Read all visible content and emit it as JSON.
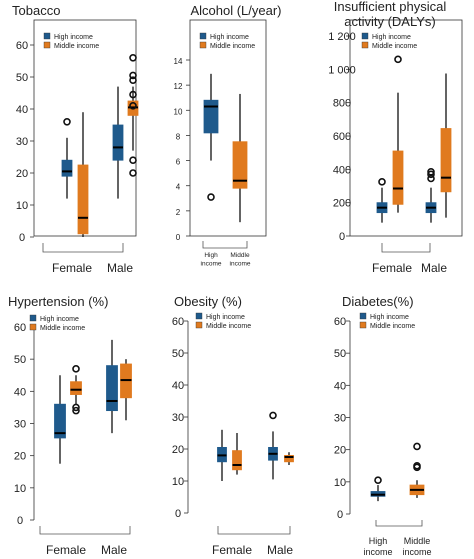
{
  "colors": {
    "high_income": "#1f5a8c",
    "middle_income": "#e07a1f",
    "median": "#000000",
    "axis": "#333333"
  },
  "chart_data": [
    {
      "type": "boxplot",
      "title": "Tobacco",
      "ylim": [
        0,
        60
      ],
      "yticks": [
        "0",
        "10",
        "20",
        "30",
        "40",
        "50",
        "60"
      ],
      "axis_style": "box",
      "categories": [
        "Female",
        "Male"
      ],
      "legend": {
        "position": "top-left",
        "entries": [
          "High income",
          "Middle income"
        ]
      },
      "series": [
        {
          "name": "High income",
          "values": [
            {
              "category": "Female",
              "min": 12,
              "q1": 19,
              "median": 20.5,
              "q3": 24,
              "max": 31,
              "outliers": [
                36
              ]
            },
            {
              "category": "Male",
              "min": 12,
              "q1": 24,
              "median": 28,
              "q3": 35,
              "max": 47,
              "outliers": []
            }
          ]
        },
        {
          "name": "Middle income",
          "values": [
            {
              "category": "Female",
              "min": 0,
              "q1": 1,
              "median": 6,
              "q3": 22.5,
              "max": 39,
              "outliers": []
            },
            {
              "category": "Male",
              "min": 27,
              "q1": 38,
              "median": 40.5,
              "q3": 42.5,
              "max": 47,
              "outliers": [
                56,
                50.5,
                49,
                44.5,
                41,
                24,
                20
              ]
            }
          ]
        }
      ]
    },
    {
      "type": "boxplot",
      "title": "Alcohol (L/year)",
      "ylim": [
        0,
        14
      ],
      "yticks": [
        "0",
        "2",
        "4",
        "6",
        "8",
        "10",
        "12",
        "14"
      ],
      "axis_style": "box",
      "categories": [
        "High income",
        "Middle income"
      ],
      "legend": {
        "position": "top-left",
        "entries": [
          "High income",
          "Middle income"
        ]
      },
      "series": [
        {
          "name": "High income",
          "values": [
            {
              "category": "High income",
              "min": 6,
              "q1": 8.2,
              "median": 10.3,
              "q3": 10.8,
              "max": 12.9,
              "outliers": [
                3.1
              ]
            },
            {
              "category": "Middle income",
              "min": null,
              "q1": null,
              "median": null,
              "q3": null,
              "max": null,
              "outliers": []
            }
          ]
        },
        {
          "name": "Middle income",
          "values": [
            {
              "category": "High income",
              "min": null,
              "q1": null,
              "median": null,
              "q3": null,
              "max": null,
              "outliers": []
            },
            {
              "category": "Middle income",
              "min": 1.1,
              "q1": 3.8,
              "median": 4.4,
              "q3": 7.5,
              "max": 11.3,
              "outliers": []
            }
          ]
        }
      ]
    },
    {
      "type": "boxplot",
      "title": "Insufficient physical activity (DALYs)",
      "ylim": [
        0,
        1200
      ],
      "yticks": [
        "0",
        "200",
        "400",
        "600",
        "800",
        "1 000",
        "1 200"
      ],
      "axis_style": "box",
      "categories": [
        "Female",
        "Male"
      ],
      "legend": {
        "position": "top-left",
        "entries": [
          "High income",
          "Middle income"
        ]
      },
      "series": [
        {
          "name": "High income",
          "values": [
            {
              "category": "Female",
              "min": 80,
              "q1": 140,
              "median": 170,
              "q3": 200,
              "max": 290,
              "outliers": [
                325
              ]
            },
            {
              "category": "Male",
              "min": 80,
              "q1": 140,
              "median": 170,
              "q3": 200,
              "max": 290,
              "outliers": [
                345,
                370,
                385
              ]
            }
          ]
        },
        {
          "name": "Middle income",
          "values": [
            {
              "category": "Female",
              "min": 140,
              "q1": 190,
              "median": 285,
              "q3": 510,
              "max": 860,
              "outliers": [
                1060
              ]
            },
            {
              "category": "Male",
              "min": 110,
              "q1": 265,
              "median": 350,
              "q3": 645,
              "max": 975,
              "outliers": []
            }
          ]
        }
      ]
    },
    {
      "type": "boxplot",
      "title": "Hypertension (%)",
      "ylim": [
        0,
        60
      ],
      "yticks": [
        "0",
        "10",
        "20",
        "30",
        "40",
        "50",
        "60"
      ],
      "axis_style": "left",
      "categories": [
        "Female",
        "Male"
      ],
      "legend": {
        "position": "top-left",
        "entries": [
          "High income",
          "Middle income"
        ]
      },
      "series": [
        {
          "name": "High income",
          "values": [
            {
              "category": "Female",
              "min": 17.5,
              "q1": 25.5,
              "median": 27,
              "q3": 36,
              "max": 45,
              "outliers": []
            },
            {
              "category": "Male",
              "min": 27,
              "q1": 34,
              "median": 37,
              "q3": 48,
              "max": 56,
              "outliers": []
            }
          ]
        },
        {
          "name": "Middle income",
          "values": [
            {
              "category": "Female",
              "min": 36,
              "q1": 39,
              "median": 40.5,
              "q3": 43,
              "max": 45,
              "outliers": [
                47,
                35,
                34
              ]
            },
            {
              "category": "Male",
              "min": 31,
              "q1": 38,
              "median": 43.5,
              "q3": 48.5,
              "max": 50,
              "outliers": []
            }
          ]
        }
      ]
    },
    {
      "type": "boxplot",
      "title": "Obesity (%)",
      "ylim": [
        0,
        60
      ],
      "yticks": [
        "0",
        "10",
        "20",
        "30",
        "40",
        "50",
        "60"
      ],
      "axis_style": "left",
      "categories": [
        "Female",
        "Male"
      ],
      "legend": {
        "position": "top-left",
        "entries": [
          "High income",
          "Middle income"
        ]
      },
      "series": [
        {
          "name": "High income",
          "values": [
            {
              "category": "Female",
              "min": 10,
              "q1": 16,
              "median": 18,
              "q3": 20.5,
              "max": 26,
              "outliers": []
            },
            {
              "category": "Male",
              "min": 10.5,
              "q1": 16.5,
              "median": 18.5,
              "q3": 20.5,
              "max": 25.5,
              "outliers": [
                30.5
              ]
            }
          ]
        },
        {
          "name": "Middle income",
          "values": [
            {
              "category": "Female",
              "min": 12,
              "q1": 13.5,
              "median": 15,
              "q3": 19.5,
              "max": 25,
              "outliers": []
            },
            {
              "category": "Male",
              "min": 15,
              "q1": 16,
              "median": 17.5,
              "q3": 18,
              "max": 19,
              "outliers": []
            }
          ]
        }
      ]
    },
    {
      "type": "boxplot",
      "title": "Diabetes(%)",
      "ylim": [
        0,
        60
      ],
      "yticks": [
        "0",
        "10",
        "20",
        "30",
        "40",
        "50",
        "60"
      ],
      "axis_style": "left",
      "categories": [
        "High income",
        "Middle income"
      ],
      "legend": {
        "position": "top-left",
        "entries": [
          "High income",
          "Middle income"
        ]
      },
      "series": [
        {
          "name": "High income",
          "values": [
            {
              "category": "High income",
              "min": 4,
              "q1": 5.5,
              "median": 6,
              "q3": 7,
              "max": 9,
              "outliers": [
                10.5
              ]
            },
            {
              "category": "Middle income",
              "min": null,
              "q1": null,
              "median": null,
              "q3": null,
              "max": null,
              "outliers": []
            }
          ]
        },
        {
          "name": "Middle income",
          "values": [
            {
              "category": "High income",
              "min": null,
              "q1": null,
              "median": null,
              "q3": null,
              "max": null,
              "outliers": []
            },
            {
              "category": "Middle income",
              "min": 5,
              "q1": 6,
              "median": 7.5,
              "q3": 9,
              "max": 10.5,
              "outliers": [
                14.5,
                15,
                21
              ]
            }
          ]
        }
      ]
    }
  ]
}
